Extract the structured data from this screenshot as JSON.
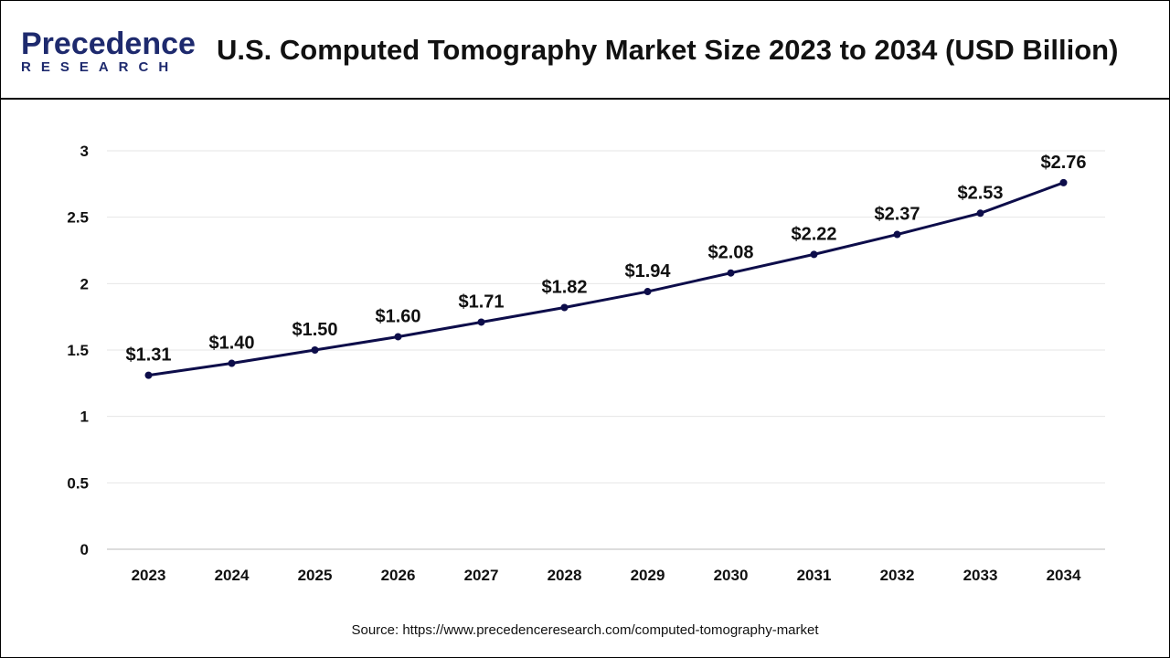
{
  "header": {
    "logo_main": "Precedence",
    "logo_sub": "RESEARCH",
    "title": "U.S. Computed Tomography Market Size 2023 to 2034 (USD Billion)"
  },
  "chart_data": {
    "type": "line",
    "title": "U.S. Computed Tomography Market Size 2023 to 2034 (USD Billion)",
    "categories": [
      "2023",
      "2024",
      "2025",
      "2026",
      "2027",
      "2028",
      "2029",
      "2030",
      "2031",
      "2032",
      "2033",
      "2034"
    ],
    "values": [
      1.31,
      1.4,
      1.5,
      1.6,
      1.71,
      1.82,
      1.94,
      2.08,
      2.22,
      2.37,
      2.53,
      2.76
    ],
    "data_labels": [
      "$1.31",
      "$1.40",
      "$1.50",
      "$1.60",
      "$1.71",
      "$1.82",
      "$1.94",
      "$2.08",
      "$2.22",
      "$2.37",
      "$2.53",
      "$2.76"
    ],
    "yticks": [
      "0",
      "0.5",
      "1",
      "1.5",
      "2",
      "2.5",
      "3"
    ],
    "ylim": [
      0,
      3
    ],
    "grid": true,
    "line_color": "#0d0d4a"
  },
  "footer": {
    "source": "Source: https://www.precedenceresearch.com/computed-tomography-market"
  }
}
